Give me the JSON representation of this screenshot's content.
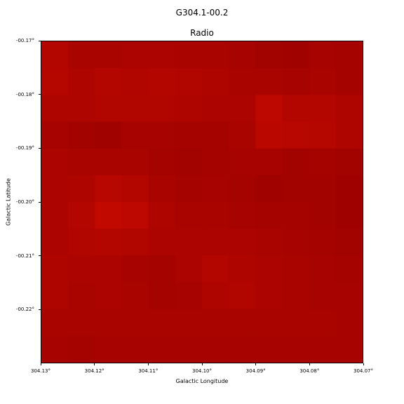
{
  "figure": {
    "title": "G304.1-00.2",
    "subtitle": "Radio",
    "xlabel": "Galactic Longitude",
    "ylabel": "Galactic Latitude"
  },
  "chart_data": {
    "type": "heatmap",
    "title": "G304.1-00.2",
    "subtitle": "Radio",
    "xlabel": "Galactic Longitude",
    "ylabel": "Galactic Latitude",
    "xlim": [
      304.13,
      304.07
    ],
    "ylim": [
      -0.23,
      -0.17
    ],
    "x_ticks": [
      "304.13°",
      "304.12°",
      "304.11°",
      "304.10°",
      "304.09°",
      "304.08°",
      "304.07°"
    ],
    "y_ticks": [
      "-00.17°",
      "-00.18°",
      "-00.19°",
      "-00.20°",
      "-00.21°",
      "-00.22°"
    ],
    "colormap": [
      "#990000",
      "#c80a00"
    ],
    "grid": false,
    "intensity": [
      [
        0.55,
        0.35,
        0.35,
        0.4,
        0.4,
        0.35,
        0.35,
        0.3,
        0.2,
        0.15,
        0.3,
        0.25
      ],
      [
        0.6,
        0.45,
        0.55,
        0.5,
        0.55,
        0.5,
        0.45,
        0.35,
        0.35,
        0.3,
        0.35,
        0.25
      ],
      [
        0.45,
        0.45,
        0.5,
        0.5,
        0.5,
        0.45,
        0.4,
        0.4,
        0.75,
        0.55,
        0.55,
        0.45
      ],
      [
        0.3,
        0.2,
        0.15,
        0.3,
        0.3,
        0.25,
        0.25,
        0.35,
        0.7,
        0.65,
        0.6,
        0.45
      ],
      [
        0.4,
        0.35,
        0.35,
        0.35,
        0.25,
        0.2,
        0.25,
        0.3,
        0.3,
        0.2,
        0.25,
        0.2
      ],
      [
        0.4,
        0.45,
        0.65,
        0.55,
        0.35,
        0.25,
        0.3,
        0.25,
        0.15,
        0.2,
        0.2,
        0.1
      ],
      [
        0.4,
        0.55,
        0.85,
        0.75,
        0.45,
        0.35,
        0.35,
        0.3,
        0.25,
        0.25,
        0.2,
        0.1
      ],
      [
        0.4,
        0.5,
        0.55,
        0.5,
        0.4,
        0.4,
        0.4,
        0.4,
        0.35,
        0.3,
        0.25,
        0.2
      ],
      [
        0.45,
        0.4,
        0.4,
        0.3,
        0.25,
        0.4,
        0.55,
        0.45,
        0.4,
        0.35,
        0.3,
        0.25
      ],
      [
        0.45,
        0.35,
        0.4,
        0.35,
        0.25,
        0.3,
        0.45,
        0.5,
        0.4,
        0.35,
        0.3,
        0.3
      ],
      [
        0.35,
        0.35,
        0.35,
        0.35,
        0.35,
        0.35,
        0.35,
        0.35,
        0.35,
        0.35,
        0.35,
        0.3
      ],
      [
        0.3,
        0.25,
        0.3,
        0.3,
        0.3,
        0.3,
        0.3,
        0.3,
        0.3,
        0.3,
        0.3,
        0.3
      ]
    ]
  }
}
